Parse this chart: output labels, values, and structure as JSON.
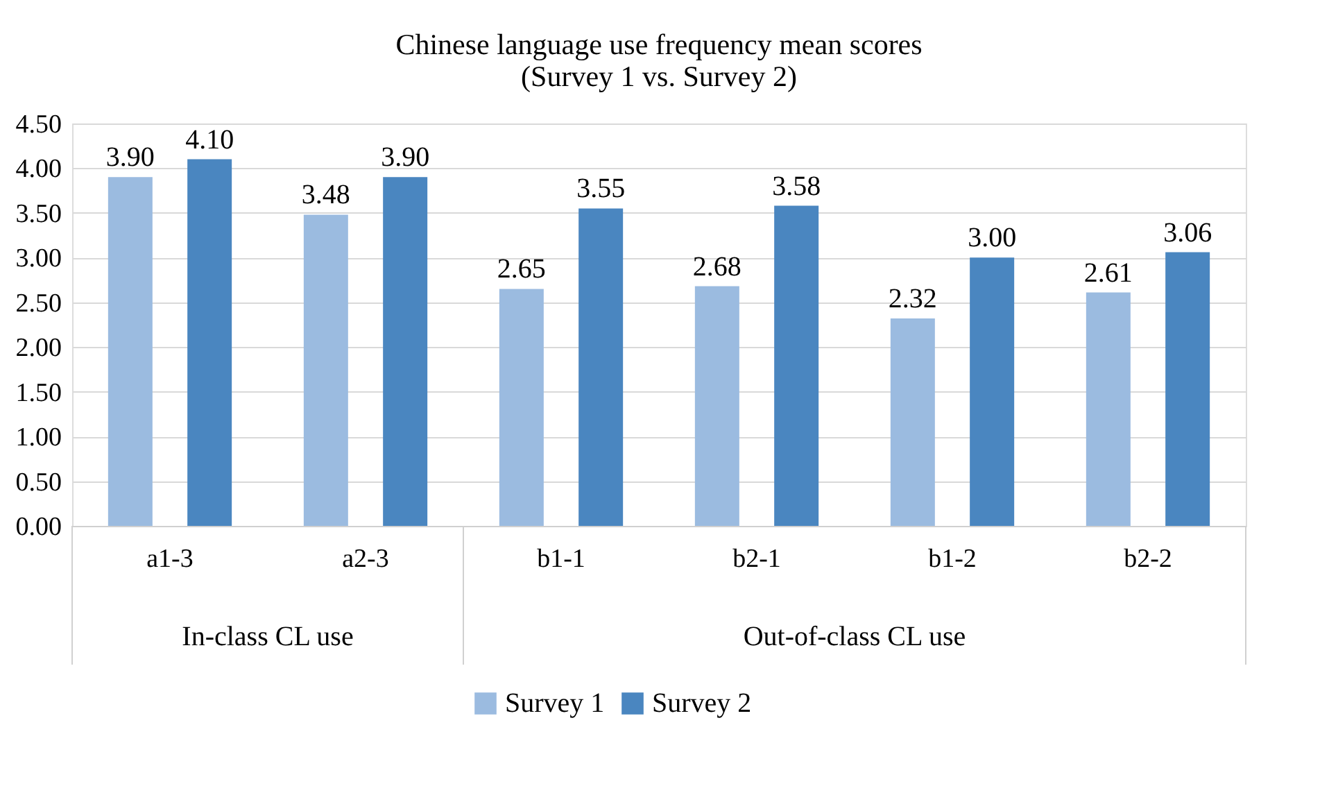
{
  "chart_data": {
    "type": "bar",
    "title": "Chinese language use frequency mean scores\n(Survey 1 vs. Survey 2)",
    "categories": [
      "a1-3",
      "a2-3",
      "b1-1",
      "b2-1",
      "b1-2",
      "b2-2"
    ],
    "series": [
      {
        "name": "Survey 1",
        "color": "#9bbbe0",
        "values": [
          3.9,
          3.48,
          2.65,
          2.68,
          2.32,
          2.61
        ],
        "value_labels": [
          "3.90",
          "3.48",
          "2.65",
          "2.68",
          "2.32",
          "2.61"
        ]
      },
      {
        "name": "Survey 2",
        "color": "#4a86c0",
        "values": [
          4.1,
          3.9,
          3.55,
          3.58,
          3.0,
          3.06
        ],
        "value_labels": [
          "4.10",
          "3.90",
          "3.55",
          "3.58",
          "3.00",
          "3.06"
        ]
      }
    ],
    "annotations": [
      "In-class CL use",
      "Out-of-class CL use"
    ],
    "ylim": [
      0,
      4.5
    ],
    "yticks": [
      {
        "value": 0,
        "label": "0.00"
      },
      {
        "value": 0.5,
        "label": "0.50"
      },
      {
        "value": 1,
        "label": "1.00"
      },
      {
        "value": 1.5,
        "label": "1.50"
      },
      {
        "value": 2,
        "label": "2.00"
      },
      {
        "value": 2.5,
        "label": "2.50"
      },
      {
        "value": 3,
        "label": "3.00"
      },
      {
        "value": 3.5,
        "label": "3.50"
      },
      {
        "value": 4,
        "label": "4.00"
      },
      {
        "value": 4.5,
        "label": "4.50"
      }
    ],
    "grid": "y",
    "legend": "bottom"
  }
}
